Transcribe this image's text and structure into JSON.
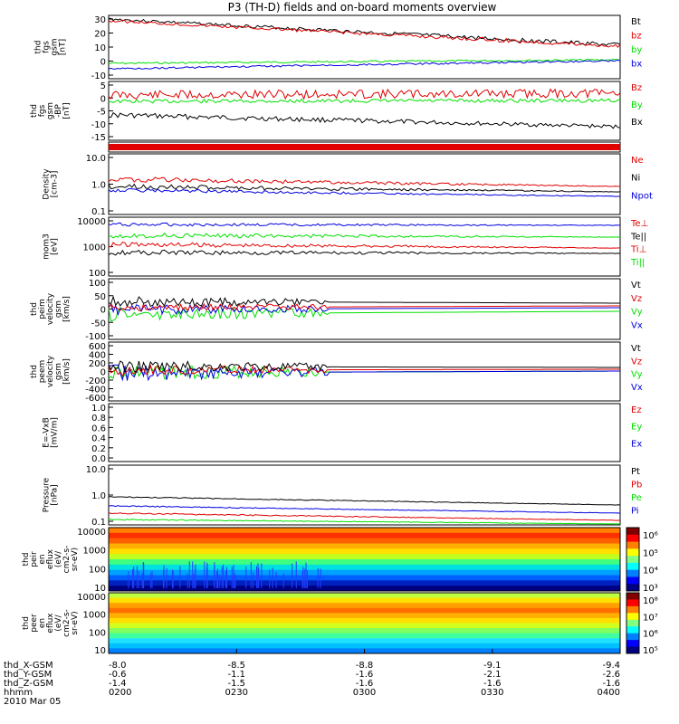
{
  "title": "P3 (TH-D) fields and on-board moments overview",
  "colors": {
    "black": "#000000",
    "red": "#e00000",
    "green": "#00e000",
    "blue": "#0000e0",
    "frame": "#000000"
  },
  "panels": [
    {
      "ylabel": [
        "thd",
        "fgs",
        "gsm",
        "[nT]"
      ],
      "ticks": [
        "30",
        "20",
        "10",
        "0",
        "-10"
      ],
      "legend": [
        {
          "t": "Bt",
          "c": "black"
        },
        {
          "t": "bz",
          "c": "red"
        },
        {
          "t": "by",
          "c": "green"
        },
        {
          "t": "bx",
          "c": "blue"
        }
      ]
    },
    {
      "ylabel": [
        "thd",
        "fgs",
        "gsm",
        "-BP",
        "[nT]"
      ],
      "ticks": [
        "5",
        "0",
        "-5",
        "-10",
        "-15"
      ],
      "legend": [
        {
          "t": "Bz",
          "c": "red"
        },
        {
          "t": "By",
          "c": "green"
        },
        {
          "t": "Bx",
          "c": "black"
        }
      ]
    },
    {
      "ylabel": [],
      "ticks": [],
      "legend": []
    },
    {
      "ylabel": [
        "Density",
        "[cm-3]"
      ],
      "ticks": [
        "10.0",
        "1.0",
        "0.1"
      ],
      "legend": [
        {
          "t": "Ne",
          "c": "red"
        },
        {
          "t": "Ni",
          "c": "black"
        },
        {
          "t": "Npot",
          "c": "blue"
        }
      ]
    },
    {
      "ylabel": [
        "mom3",
        "[eV]"
      ],
      "ticks": [
        "10000",
        "1000",
        "100"
      ],
      "legend": [
        {
          "t": "Te⊥",
          "c": "red"
        },
        {
          "t": "Te||",
          "c": "black"
        },
        {
          "t": "Ti⊥",
          "c": "red"
        },
        {
          "t": "Ti||",
          "c": "green"
        }
      ]
    },
    {
      "ylabel": [
        "thd",
        "peim",
        "velocity",
        "gsm",
        "[km/s]"
      ],
      "ticks": [
        "100",
        "50",
        "0",
        "-50",
        "-100"
      ],
      "legend": [
        {
          "t": "Vt",
          "c": "black"
        },
        {
          "t": "Vz",
          "c": "red"
        },
        {
          "t": "Vy",
          "c": "green"
        },
        {
          "t": "Vx",
          "c": "blue"
        }
      ]
    },
    {
      "ylabel": [
        "thd",
        "peem",
        "velocity",
        "gsm",
        "[km/s]"
      ],
      "ticks": [
        "600",
        "400",
        "200",
        "0",
        "-200",
        "-400",
        "-600"
      ],
      "legend": [
        {
          "t": "Vt",
          "c": "black"
        },
        {
          "t": "Vz",
          "c": "red"
        },
        {
          "t": "Vy",
          "c": "green"
        },
        {
          "t": "Vx",
          "c": "blue"
        }
      ]
    },
    {
      "ylabel": [
        "E=-VxB",
        "[mV/m]"
      ],
      "ticks": [
        "1.0",
        "0.8",
        "0.6",
        "0.4",
        "0.2",
        "0.0"
      ],
      "legend": [
        {
          "t": "Ez",
          "c": "red"
        },
        {
          "t": "Ey",
          "c": "green"
        },
        {
          "t": "Ex",
          "c": "blue"
        }
      ]
    },
    {
      "ylabel": [
        "Pressure",
        "[nPa]"
      ],
      "ticks": [
        "10.0",
        "1.0",
        "0.1"
      ],
      "legend": [
        {
          "t": "Pt",
          "c": "black"
        },
        {
          "t": "Pb",
          "c": "red"
        },
        {
          "t": "Pe",
          "c": "green"
        },
        {
          "t": "Pi",
          "c": "blue"
        }
      ]
    },
    {
      "ylabel": [
        "thd",
        "peir",
        "en",
        "eflux",
        "(eV/",
        "cm2-s-",
        "sr-eV)"
      ],
      "ticks": [
        "10000",
        "1000",
        "100",
        "10"
      ],
      "legend": []
    },
    {
      "ylabel": [
        "thd",
        "peer",
        "en",
        "eflux",
        "(eV/",
        "cm2-s-",
        "sr-eV)"
      ],
      "ticks": [
        "10000",
        "1000",
        "100",
        "10"
      ],
      "legend": []
    }
  ],
  "colorbars": [
    {
      "labels": [
        "10⁶",
        "10⁵",
        "10⁴",
        "10³"
      ]
    },
    {
      "labels": [
        "10⁸",
        "10⁷",
        "10⁶",
        "10⁵"
      ]
    }
  ],
  "xaxis": {
    "row_labels": [
      "thd_X-GSM",
      "thd_Y-GSM",
      "thd_Z-GSM",
      "hhmm",
      "2010 Mar 05"
    ],
    "columns": [
      {
        "x": "-8.0",
        "y": "-0.6",
        "z": "-1.4",
        "t": "0200"
      },
      {
        "x": "-8.5",
        "y": "-1.1",
        "z": "-1.5",
        "t": "0230"
      },
      {
        "x": "-8.8",
        "y": "-1.6",
        "z": "-1.6",
        "t": "0300"
      },
      {
        "x": "-9.1",
        "y": "-2.1",
        "z": "-1.6",
        "t": "0330"
      },
      {
        "x": "-9.4",
        "y": "-2.6",
        "z": "-1.6",
        "t": "0400"
      }
    ]
  },
  "chart_data": {
    "type": "line",
    "title": "P3 (TH-D) fields and on-board moments overview",
    "x": [
      "0200",
      "0230",
      "0300",
      "0330",
      "0400"
    ],
    "series": [
      {
        "name": "Bt",
        "values": [
          26,
          23,
          19,
          17,
          14
        ]
      },
      {
        "name": "bz",
        "values": [
          26,
          22,
          19,
          16,
          13
        ]
      },
      {
        "name": "by",
        "values": [
          0,
          0,
          1,
          2,
          2
        ]
      },
      {
        "name": "bx",
        "values": [
          -4,
          -4,
          -3,
          -1,
          1
        ]
      },
      {
        "name": "Ne",
        "values": [
          1.5,
          0.9,
          0.8,
          0.75,
          0.75
        ]
      },
      {
        "name": "Ni",
        "values": [
          0.9,
          0.7,
          0.6,
          0.55,
          0.55
        ]
      },
      {
        "name": "Npot",
        "values": [
          0.6,
          0.5,
          0.45,
          0.4,
          0.4
        ]
      },
      {
        "name": "Pt",
        "values": [
          1.1,
          0.8,
          0.6,
          0.55,
          0.55
        ]
      },
      {
        "name": "Pi",
        "values": [
          0.6,
          0.4,
          0.3,
          0.28,
          0.28
        ]
      }
    ]
  }
}
